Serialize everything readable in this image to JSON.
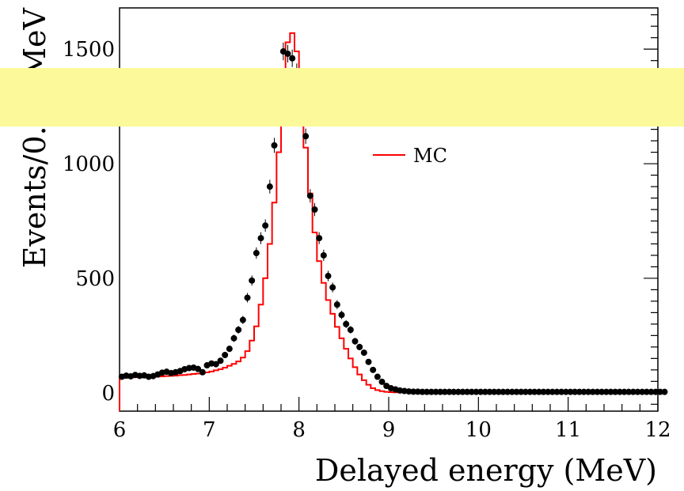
{
  "chart_data": {
    "type": "line",
    "xlabel": "Delayed energy (MeV)",
    "ylabel": "Events/0.05 MeV",
    "xlim": [
      6,
      12
    ],
    "ylim": [
      -80,
      1680
    ],
    "x_ticks": [
      6,
      7,
      8,
      9,
      10,
      11,
      12
    ],
    "y_ticks": [
      0,
      500,
      1000,
      1500
    ],
    "bin_width": 0.05,
    "legend": {
      "position": "top-right",
      "entries": [
        "MC"
      ]
    },
    "colors": {
      "mc": "#ff0000",
      "data": "#000000",
      "overlay": "#fcf99a"
    },
    "series": [
      {
        "name": "MC",
        "style": "step",
        "x_start": 6.0,
        "values": [
          65,
          66,
          67,
          68,
          68,
          68,
          69,
          70,
          71,
          72,
          73,
          74,
          75,
          77,
          78,
          80,
          82,
          84,
          86,
          89,
          93,
          98,
          103,
          110,
          118,
          126,
          137,
          154,
          182,
          228,
          290,
          385,
          500,
          650,
          830,
          1050,
          1320,
          1530,
          1570,
          1490,
          1300,
          1070,
          870,
          700,
          575,
          480,
          405,
          345,
          288,
          238,
          192,
          150,
          112,
          80,
          55,
          35,
          20,
          12,
          7,
          4,
          3,
          2,
          2,
          2,
          2,
          2,
          2,
          2,
          2,
          2,
          2,
          2,
          2,
          2,
          2,
          2,
          2,
          2,
          2,
          2,
          2,
          2,
          2,
          2,
          2,
          2,
          2,
          2,
          2,
          2,
          2,
          2,
          2,
          2,
          2,
          2,
          2,
          2,
          2,
          2,
          2,
          2,
          2,
          2,
          2,
          2,
          2,
          2,
          2,
          2,
          2,
          2,
          2,
          2,
          2,
          2,
          2,
          2,
          2,
          2,
          2,
          2
        ]
      },
      {
        "style": "markers",
        "x_start": 6.025,
        "values": [
          70,
          75,
          72,
          78,
          74,
          76,
          70,
          73,
          80,
          88,
          92,
          86,
          90,
          95,
          103,
          108,
          110,
          104,
          90,
          120,
          128,
          125,
          140,
          165,
          192,
          238,
          275,
          318,
          415,
          490,
          610,
          675,
          730,
          900,
          1080,
          1230,
          1490,
          1480,
          1460,
          1400,
          1240,
          1120,
          860,
          800,
          675,
          600,
          510,
          460,
          385,
          340,
          300,
          275,
          225,
          200,
          175,
          135,
          100,
          70,
          48,
          30,
          20,
          15,
          10,
          8,
          6,
          5,
          5,
          4,
          4,
          4,
          4,
          4,
          4,
          4,
          4,
          4,
          4,
          4,
          4,
          4,
          4,
          4,
          4,
          4,
          4,
          4,
          4,
          4,
          4,
          4,
          4,
          4,
          4,
          4,
          4,
          4,
          4,
          4,
          4,
          4,
          4,
          4,
          4,
          4,
          4,
          4,
          4,
          4,
          4,
          4,
          4,
          4,
          4,
          4,
          4,
          4,
          4,
          4,
          4,
          4,
          4,
          4
        ]
      }
    ]
  }
}
